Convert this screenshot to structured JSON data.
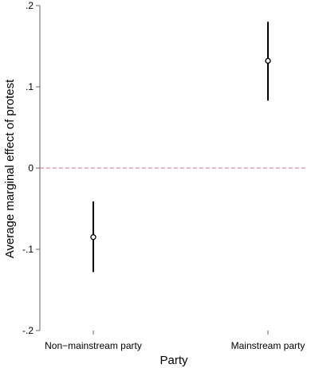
{
  "chart_data": {
    "type": "scatter",
    "title": "",
    "xlabel": "Party",
    "ylabel": "Average marginal effect of protest",
    "categories": [
      "Non−mainstream party",
      "Mainstream party"
    ],
    "series": [
      {
        "estimates": [
          -0.085,
          0.132
        ],
        "ci_lower": [
          -0.128,
          0.083
        ],
        "ci_upper": [
          -0.041,
          0.18
        ]
      }
    ],
    "ylim": [
      -0.2,
      0.2
    ],
    "yticks": [
      {
        "value": -0.2,
        "label": "-.2"
      },
      {
        "value": -0.1,
        "label": "-.1"
      },
      {
        "value": 0,
        "label": "0"
      },
      {
        "value": 0.1,
        "label": ".1"
      },
      {
        "value": 0.2,
        "label": ".2"
      }
    ],
    "reference_line": {
      "value": 0,
      "color": "#d07080",
      "style": "dashed"
    },
    "grid": false,
    "legend": "none",
    "colors": {
      "marker": "#000000",
      "reference": "#d07080"
    }
  }
}
